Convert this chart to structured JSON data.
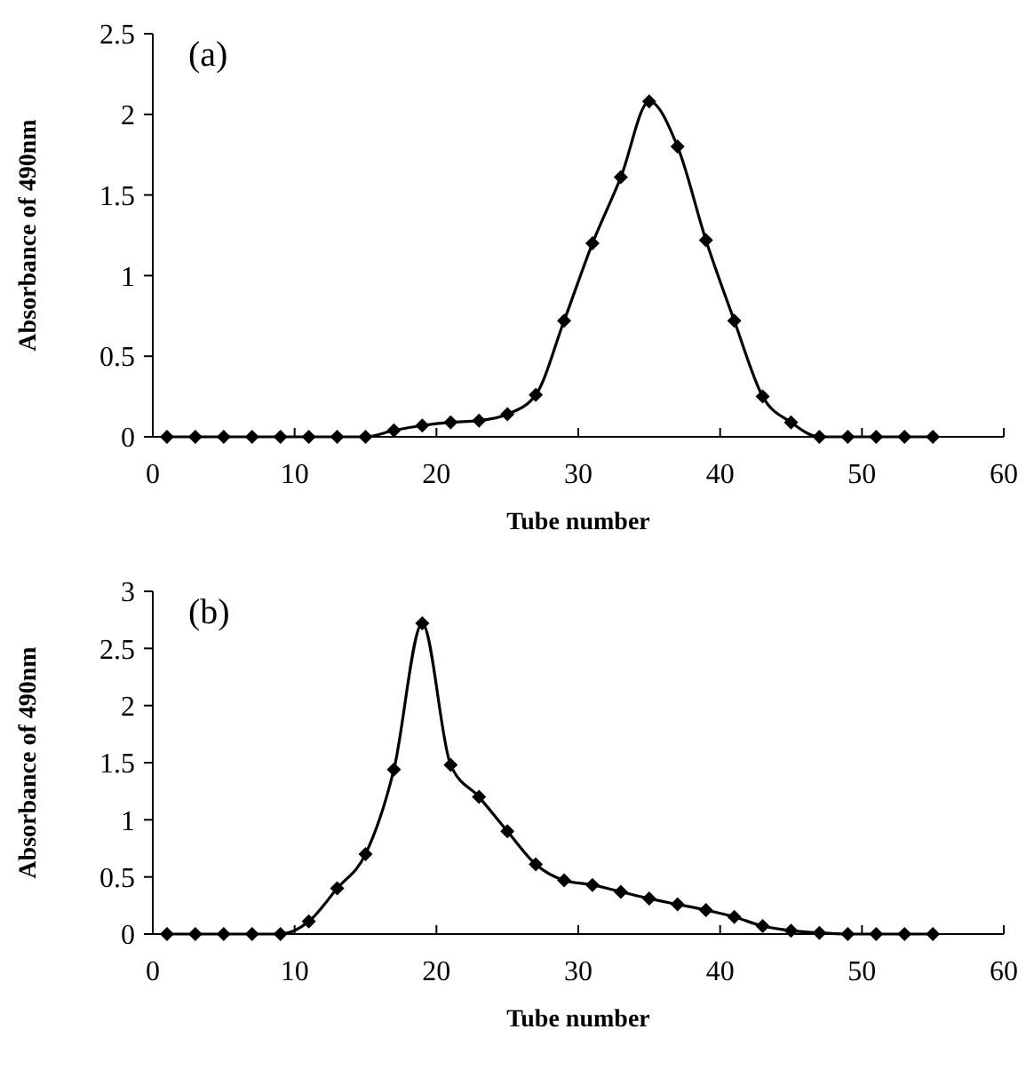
{
  "chart_data": [
    {
      "type": "line",
      "annotations": [
        "(a)"
      ],
      "xlabel": "Tube number",
      "ylabel": "Absorbance of 490nm",
      "marker": "diamond",
      "line_style": "solid",
      "x": [
        1,
        3,
        5,
        7,
        9,
        11,
        13,
        15,
        17,
        19,
        21,
        23,
        25,
        27,
        29,
        31,
        33,
        35,
        37,
        39,
        41,
        43,
        45,
        47,
        49,
        51,
        53,
        55
      ],
      "series": [
        {
          "color": "#000000",
          "values": [
            0,
            0,
            0,
            0,
            0,
            0,
            0,
            0,
            0.04,
            0.07,
            0.09,
            0.1,
            0.14,
            0.26,
            0.72,
            1.2,
            1.61,
            2.08,
            1.8,
            1.22,
            0.72,
            0.25,
            0.09,
            0,
            0,
            0,
            0,
            0
          ]
        }
      ],
      "xlim": [
        0,
        60
      ],
      "xticks": [
        0,
        10,
        20,
        30,
        40,
        50,
        60
      ],
      "ylim": [
        0,
        2.5
      ],
      "yticks": [
        0,
        0.5,
        1,
        1.5,
        2,
        2.5
      ]
    },
    {
      "type": "line",
      "annotations": [
        "(b)"
      ],
      "xlabel": "Tube number",
      "ylabel": "Absorbance of 490nm",
      "marker": "diamond",
      "line_style": "solid",
      "x": [
        1,
        3,
        5,
        7,
        9,
        11,
        13,
        15,
        17,
        19,
        21,
        23,
        25,
        27,
        29,
        31,
        33,
        35,
        37,
        39,
        41,
        43,
        45,
        47,
        49,
        51,
        53,
        55
      ],
      "series": [
        {
          "color": "#000000",
          "values": [
            0,
            0,
            0,
            0,
            0,
            0.11,
            0.4,
            0.7,
            1.44,
            2.72,
            1.48,
            1.2,
            0.9,
            0.61,
            0.47,
            0.43,
            0.37,
            0.31,
            0.26,
            0.21,
            0.15,
            0.07,
            0.03,
            0.01,
            0,
            0,
            0,
            0
          ]
        }
      ],
      "xlim": [
        0,
        60
      ],
      "xticks": [
        0,
        10,
        20,
        30,
        40,
        50,
        60
      ],
      "ylim": [
        0,
        3
      ],
      "yticks": [
        0,
        0.5,
        1,
        1.5,
        2,
        2.5,
        3
      ]
    }
  ]
}
